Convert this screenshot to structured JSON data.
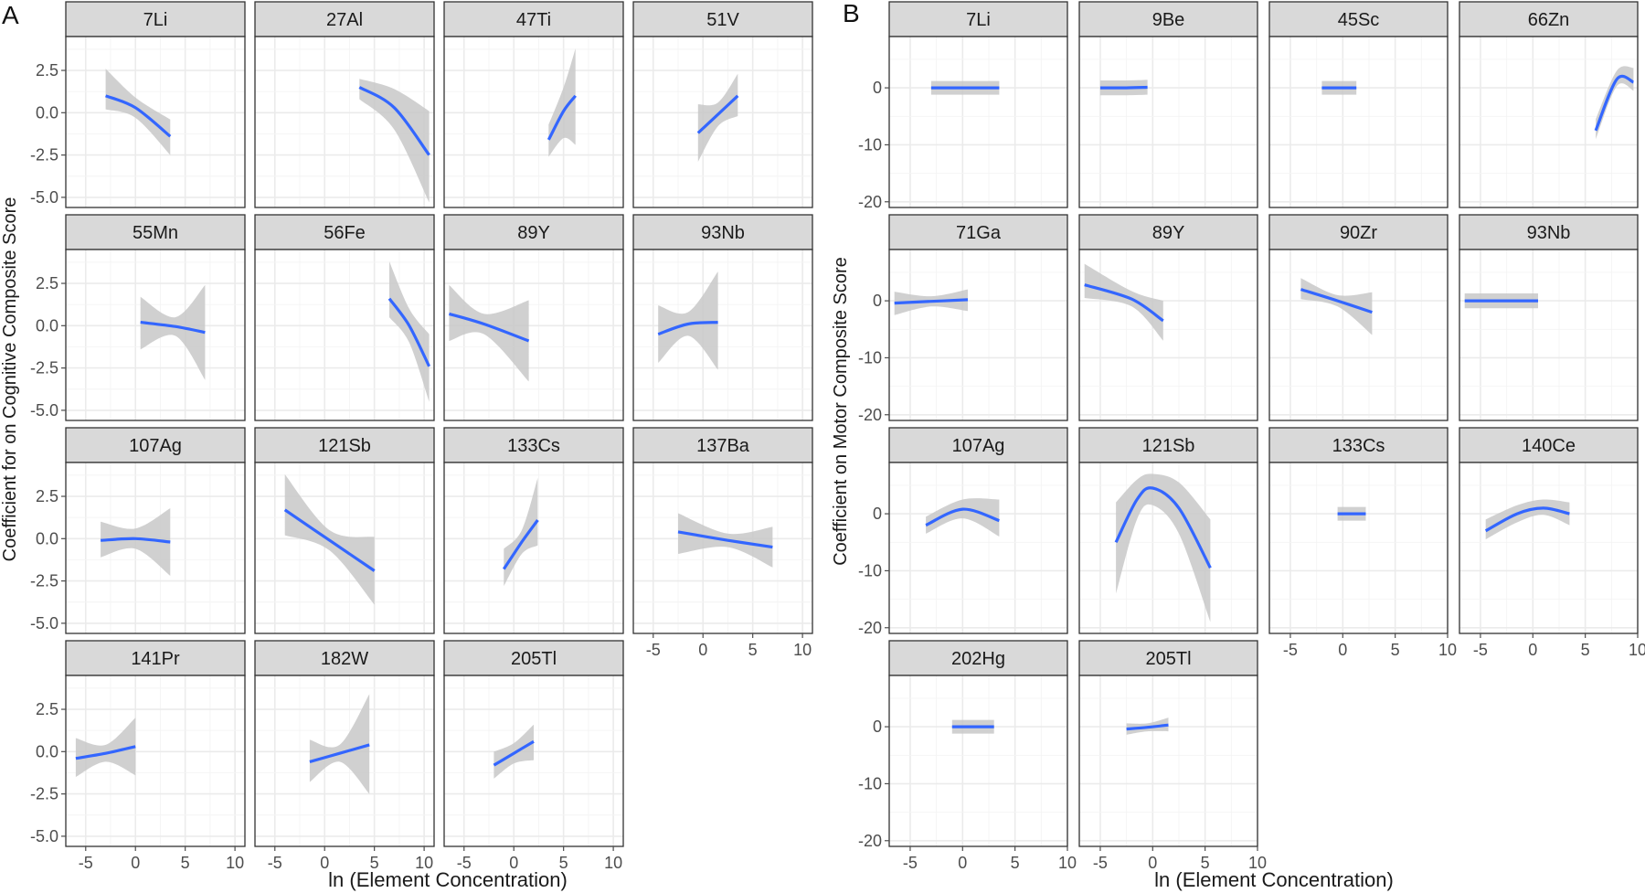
{
  "colors": {
    "line": "#3366ff",
    "ribbon": "#c8c8c8",
    "strip": "#d9d9d9",
    "grid_major": "#ebebeb",
    "grid_minor": "#f4f4f4",
    "frame": "#333333",
    "text": "#1a1a1a",
    "tick": "#4d4d4d"
  },
  "chart_data": [
    {
      "panel_label": "A",
      "type": "line",
      "description": "Faceted smooth curves with confidence ribbons",
      "xlabel": "ln (Element Concentration)",
      "ylabel": "Coefficient for on Cognitive Composite Score",
      "xlim": [
        -7,
        11
      ],
      "xticks": [
        -5,
        0,
        5,
        10
      ],
      "tick_labels_x": [
        "-5",
        "0",
        "5",
        "10"
      ],
      "ylim": [
        -5.6,
        4.5
      ],
      "yticks": [
        -5,
        -2.5,
        0,
        2.5
      ],
      "tick_labels_y": [
        "-5.0",
        "-2.5",
        "0.0",
        "2.5"
      ],
      "ncol": 4,
      "facets": [
        {
          "label": "7Li",
          "x": [
            -3,
            0,
            3.5
          ],
          "y": [
            1.0,
            0.3,
            -1.4
          ],
          "lower": [
            0.2,
            -0.3,
            -2.5
          ],
          "upper": [
            2.6,
            0.9,
            -0.4
          ]
        },
        {
          "label": "27Al",
          "x": [
            3.5,
            7,
            10.5
          ],
          "y": [
            1.5,
            0.3,
            -2.5
          ],
          "lower": [
            0.8,
            -1.0,
            -5.3
          ],
          "upper": [
            2.0,
            1.4,
            0.1
          ]
        },
        {
          "label": "47Ti",
          "x": [
            3.5,
            5,
            6.2
          ],
          "y": [
            -1.6,
            0.1,
            1.0
          ],
          "lower": [
            -2.6,
            -1.5,
            -1.9
          ],
          "upper": [
            -0.7,
            1.5,
            3.8
          ]
        },
        {
          "label": "51V",
          "x": [
            -0.5,
            1.5,
            3.5
          ],
          "y": [
            -1.2,
            -0.1,
            1.0
          ],
          "lower": [
            -2.9,
            -0.8,
            -0.2
          ],
          "upper": [
            0.5,
            0.6,
            2.3
          ]
        },
        {
          "label": "55Mn",
          "x": [
            0.5,
            4,
            7
          ],
          "y": [
            0.2,
            -0.05,
            -0.4
          ],
          "lower": [
            -1.4,
            -0.6,
            -3.2
          ],
          "upper": [
            1.7,
            0.5,
            2.4
          ]
        },
        {
          "label": "56Fe",
          "x": [
            6.5,
            8.5,
            10.5
          ],
          "y": [
            1.6,
            0.0,
            -2.4
          ],
          "lower": [
            0.5,
            -1.0,
            -4.5
          ],
          "upper": [
            3.8,
            1.0,
            -0.5
          ]
        },
        {
          "label": "89Y",
          "x": [
            -6.5,
            -3,
            1.5
          ],
          "y": [
            0.7,
            0.1,
            -0.9
          ],
          "lower": [
            -0.9,
            -0.5,
            -3.3
          ],
          "upper": [
            2.4,
            0.7,
            1.5
          ]
        },
        {
          "label": "93Nb",
          "x": [
            -4.5,
            -1.5,
            1.5
          ],
          "y": [
            -0.5,
            0.1,
            0.2
          ],
          "lower": [
            -2.2,
            -0.6,
            -2.6
          ],
          "upper": [
            1.2,
            0.8,
            3.2
          ]
        },
        {
          "label": "107Ag",
          "x": [
            -3.5,
            0,
            3.5
          ],
          "y": [
            -0.1,
            0.0,
            -0.2
          ],
          "lower": [
            -1.1,
            -0.6,
            -2.2
          ],
          "upper": [
            1.0,
            0.6,
            1.8
          ]
        },
        {
          "label": "121Sb",
          "x": [
            -4,
            0.5,
            5
          ],
          "y": [
            1.7,
            -0.1,
            -1.9
          ],
          "lower": [
            0.2,
            -0.7,
            -3.9
          ],
          "upper": [
            3.8,
            0.5,
            0.1
          ]
        },
        {
          "label": "133Cs",
          "x": [
            -1,
            0.8,
            2.4
          ],
          "y": [
            -1.8,
            -0.2,
            1.1
          ],
          "lower": [
            -2.8,
            -0.9,
            -0.4
          ],
          "upper": [
            -0.6,
            0.5,
            3.6
          ]
        },
        {
          "label": "137Ba",
          "x": [
            -2.5,
            2.5,
            7
          ],
          "y": [
            0.4,
            -0.1,
            -0.5
          ],
          "lower": [
            -0.9,
            -0.5,
            -1.7
          ],
          "upper": [
            1.5,
            0.3,
            0.7
          ]
        },
        {
          "label": "141Pr",
          "x": [
            -6,
            -3,
            0
          ],
          "y": [
            -0.4,
            -0.1,
            0.3
          ],
          "lower": [
            -1.5,
            -0.6,
            -1.4
          ],
          "upper": [
            0.8,
            0.4,
            2.0
          ]
        },
        {
          "label": "182W",
          "x": [
            -1.5,
            1.5,
            4.5
          ],
          "y": [
            -0.6,
            -0.1,
            0.4
          ],
          "lower": [
            -1.8,
            -0.6,
            -2.5
          ],
          "upper": [
            0.7,
            0.4,
            3.4
          ]
        },
        {
          "label": "205Tl",
          "x": [
            -2,
            0,
            2
          ],
          "y": [
            -0.8,
            -0.1,
            0.6
          ],
          "lower": [
            -1.6,
            -0.7,
            -0.5
          ],
          "upper": [
            0.0,
            0.5,
            1.6
          ]
        }
      ]
    },
    {
      "panel_label": "B",
      "type": "line",
      "description": "Faceted smooth curves with confidence ribbons",
      "xlabel": "ln (Element Concentration)",
      "ylabel": "Coefficient on Motor Composite Score",
      "xlim": [
        -7,
        10
      ],
      "xticks": [
        -5,
        0,
        5,
        10
      ],
      "tick_labels_x": [
        "-5",
        "0",
        "5",
        "10"
      ],
      "ylim": [
        -21,
        9
      ],
      "yticks": [
        -20,
        -10,
        0
      ],
      "tick_labels_y": [
        "-20",
        "-10",
        "0"
      ],
      "ncol": 4,
      "facets": [
        {
          "label": "7Li",
          "x": [
            -3,
            0,
            3.5
          ],
          "y": [
            0,
            0,
            0
          ],
          "lower": [
            -1.2,
            -1.2,
            -1.2
          ],
          "upper": [
            1.2,
            1.2,
            1.2
          ]
        },
        {
          "label": "9Be",
          "x": [
            -5,
            -2.5,
            -0.5
          ],
          "y": [
            0,
            0,
            0.1
          ],
          "lower": [
            -1.3,
            -1.3,
            -1.2
          ],
          "upper": [
            1.3,
            1.3,
            1.4
          ]
        },
        {
          "label": "45Sc",
          "x": [
            -2,
            -0.5,
            1.3
          ],
          "y": [
            0,
            0,
            0
          ],
          "lower": [
            -1.2,
            -1.2,
            -1.2
          ],
          "upper": [
            1.2,
            1.2,
            1.2
          ]
        },
        {
          "label": "66Zn",
          "x": [
            6,
            8,
            9.6
          ],
          "y": [
            -7.5,
            1.5,
            1.0
          ],
          "lower": [
            -9.0,
            0.3,
            -0.5
          ],
          "upper": [
            -5.5,
            3.0,
            3.5
          ]
        },
        {
          "label": "71Ga",
          "x": [
            -6.5,
            -3,
            0.5
          ],
          "y": [
            -0.4,
            -0.1,
            0.2
          ],
          "lower": [
            -2.5,
            -1.0,
            -1.8
          ],
          "upper": [
            1.6,
            0.8,
            2.0
          ]
        },
        {
          "label": "89Y",
          "x": [
            -6.5,
            -2,
            1
          ],
          "y": [
            2.8,
            0.3,
            -3.5
          ],
          "lower": [
            0.5,
            -1.0,
            -7.0
          ],
          "upper": [
            6.5,
            1.7,
            0.0
          ]
        },
        {
          "label": "90Zr",
          "x": [
            -4,
            -0.5,
            2.8
          ],
          "y": [
            2.0,
            0.0,
            -2.0
          ],
          "lower": [
            0.3,
            -1.0,
            -6.0
          ],
          "upper": [
            4.0,
            1.0,
            1.5
          ]
        },
        {
          "label": "93Nb",
          "x": [
            -6.5,
            -3,
            0.5
          ],
          "y": [
            0,
            0,
            0
          ],
          "lower": [
            -1.3,
            -1.3,
            -1.3
          ],
          "upper": [
            1.3,
            1.3,
            1.3
          ]
        },
        {
          "label": "107Ag",
          "x": [
            -3.5,
            0,
            3.5
          ],
          "y": [
            -2.0,
            0.8,
            -1.2
          ],
          "lower": [
            -3.5,
            -0.8,
            -4.0
          ],
          "upper": [
            -0.5,
            2.5,
            2.5
          ]
        },
        {
          "label": "121Sb",
          "x": [
            -3.5,
            -1.5,
            0,
            2.5,
            5.5
          ],
          "y": [
            -5.0,
            2.5,
            4.5,
            1.0,
            -9.5
          ],
          "lower": [
            -14.0,
            -1.0,
            1.5,
            -3.5,
            -19.0
          ],
          "upper": [
            2.0,
            6.0,
            7.0,
            5.5,
            -1.0
          ]
        },
        {
          "label": "133Cs",
          "x": [
            -0.5,
            0.7,
            2.2
          ],
          "y": [
            0,
            0,
            0
          ],
          "lower": [
            -1.2,
            -1.2,
            -1.2
          ],
          "upper": [
            1.2,
            1.2,
            1.2
          ]
        },
        {
          "label": "140Ce",
          "x": [
            -4.5,
            -1.5,
            1,
            3.5
          ],
          "y": [
            -3.0,
            0.0,
            1.0,
            0.0
          ],
          "lower": [
            -4.5,
            -1.5,
            -0.2,
            -2.0
          ],
          "upper": [
            -1.0,
            1.5,
            2.5,
            2.0
          ]
        },
        {
          "label": "202Hg",
          "x": [
            -1,
            1,
            3
          ],
          "y": [
            0,
            0,
            0
          ],
          "lower": [
            -1.2,
            -1.2,
            -1.2
          ],
          "upper": [
            1.2,
            1.2,
            1.2
          ]
        },
        {
          "label": "205Tl",
          "x": [
            -2.5,
            -0.5,
            1.5
          ],
          "y": [
            -0.4,
            -0.1,
            0.3
          ],
          "lower": [
            -1.4,
            -0.8,
            -0.8
          ],
          "upper": [
            0.6,
            0.6,
            1.6
          ]
        }
      ]
    }
  ]
}
